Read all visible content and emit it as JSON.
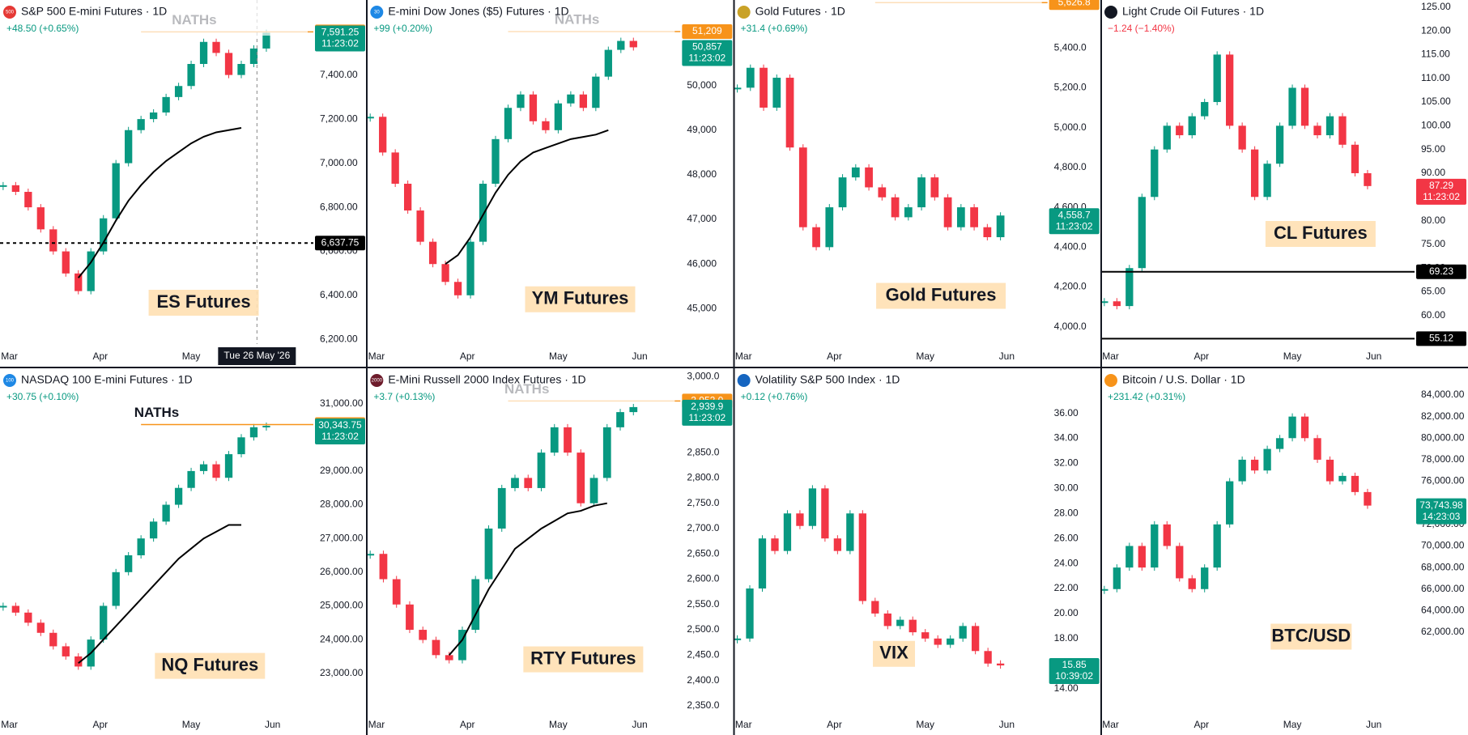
{
  "panels": [
    {
      "type": "candlestick",
      "icon": "500",
      "title": "S&P 500 E-mini Futures · 1D",
      "change": "+48.50 (+0.65%)",
      "change_color": "#089981",
      "ylim": [
        6180,
        7740
      ],
      "yticks": [
        {
          "value": 6200,
          "label": "6,200.00"
        },
        {
          "value": 6400,
          "label": "6,400.00"
        },
        {
          "value": 6600,
          "label": "6,600.00"
        },
        {
          "value": 6800,
          "label": "6,800.00"
        },
        {
          "value": 7000,
          "label": "7,000.00"
        },
        {
          "value": 7200,
          "label": "7,200.00"
        },
        {
          "value": 7400,
          "label": "7,400.00"
        }
      ],
      "categories": [
        "Mar",
        "Apr",
        "May",
        "Jun"
      ],
      "values": [
        6900,
        6870,
        6800,
        6700,
        6600,
        6500,
        6420,
        6600,
        6750,
        7000,
        7150,
        7200,
        7230,
        7300,
        7350,
        7450,
        7550,
        7500,
        7400,
        7450,
        7520,
        7591.25
      ],
      "ma": [
        null,
        null,
        null,
        null,
        null,
        null,
        6480,
        6550,
        6640,
        6740,
        6830,
        6900,
        6960,
        7010,
        7050,
        7090,
        7120,
        7140,
        7150,
        7160,
        null,
        null
      ],
      "price_labels": [
        {
          "value": 7595.25,
          "label": "7,595.25",
          "color": "#f7931a"
        },
        {
          "value": 7591.25,
          "label": "7,591.25",
          "color": "#089981",
          "time": "11:23:02"
        },
        {
          "value": 6637.75,
          "label": "6,637.75",
          "color": "#000000"
        }
      ],
      "note": "NATHs",
      "label": "ES Futures",
      "crosshair_date": "Tue 26 May '26"
    },
    {
      "type": "candlestick",
      "icon": "30",
      "title": "E-mini Dow Jones ($5) Futures · 1D",
      "change": "+99 (+0.20%)",
      "change_color": "#089981",
      "ylim": [
        44208,
        51917
      ],
      "yticks": [
        {
          "value": 45000,
          "label": "45,000"
        },
        {
          "value": 46000,
          "label": "46,000"
        },
        {
          "value": 47000,
          "label": "47,000"
        },
        {
          "value": 48000,
          "label": "48,000"
        },
        {
          "value": 49000,
          "label": "49,000"
        },
        {
          "value": 50000,
          "label": "50,000"
        }
      ],
      "categories": [
        "Mar",
        "Apr",
        "May",
        "Jun"
      ],
      "values": [
        49300,
        48500,
        47800,
        47200,
        46500,
        46000,
        45600,
        45300,
        46500,
        47800,
        48800,
        49500,
        49800,
        49200,
        49000,
        49600,
        49800,
        49500,
        50200,
        50800,
        51000,
        50857
      ],
      "ma": [
        null,
        null,
        null,
        null,
        null,
        null,
        46000,
        46200,
        46600,
        47100,
        47600,
        48000,
        48300,
        48500,
        48600,
        48700,
        48800,
        48850,
        48900,
        49000,
        null,
        null
      ],
      "price_labels": [
        {
          "value": 51209,
          "label": "51,209",
          "color": "#f7931a"
        },
        {
          "value": 50857,
          "label": "50,857",
          "color": "#089981",
          "time": "11:23:02"
        }
      ],
      "note": "NATHs",
      "label": "YM Futures"
    },
    {
      "type": "candlestick",
      "title": "Gold Futures · 1D",
      "change": "+31.4 (+0.69%)",
      "change_color": "#089981",
      "ylim": [
        3914,
        5640
      ],
      "yticks": [
        {
          "value": 4000,
          "label": "4,000.0"
        },
        {
          "value": 4200,
          "label": "4,200.0"
        },
        {
          "value": 4400,
          "label": "4,400.0"
        },
        {
          "value": 4600,
          "label": "4,600.0"
        },
        {
          "value": 4800,
          "label": "4,800.0"
        },
        {
          "value": 5000,
          "label": "5,000.0"
        },
        {
          "value": 5200,
          "label": "5,200.0"
        },
        {
          "value": 5400,
          "label": "5,400.0"
        }
      ],
      "categories": [
        "Mar",
        "Apr",
        "May",
        "Jun"
      ],
      "values": [
        5200,
        5300,
        5100,
        5250,
        4900,
        4500,
        4400,
        4600,
        4750,
        4800,
        4700,
        4650,
        4550,
        4600,
        4750,
        4650,
        4500,
        4600,
        4500,
        4450,
        4558.7
      ],
      "price_labels": [
        {
          "value": 5626.8,
          "label": "5,626.8",
          "color": "#f7931a"
        },
        {
          "value": 4558.7,
          "label": "4,558.7",
          "color": "#089981",
          "time": "11:23:02"
        }
      ],
      "label": "Gold Futures"
    },
    {
      "type": "candlestick",
      "title": "Light Crude Oil Futures · 1D",
      "change": "−1.24 (−1.40%)",
      "change_color": "#f23645",
      "ylim": [
        54,
        126.5
      ],
      "yticks": [
        {
          "value": 60,
          "label": "60.00"
        },
        {
          "value": 65,
          "label": "65.00"
        },
        {
          "value": 70,
          "label": "70.00"
        },
        {
          "value": 75,
          "label": "75.00"
        },
        {
          "value": 80,
          "label": "80.00"
        },
        {
          "value": 85,
          "label": "85.00"
        },
        {
          "value": 90,
          "label": "90.00"
        },
        {
          "value": 95,
          "label": "95.00"
        },
        {
          "value": 100,
          "label": "100.00"
        },
        {
          "value": 105,
          "label": "105.00"
        },
        {
          "value": 110,
          "label": "110.00"
        },
        {
          "value": 115,
          "label": "115.00"
        },
        {
          "value": 120,
          "label": "120.00"
        },
        {
          "value": 125,
          "label": "125.00"
        }
      ],
      "categories": [
        "Mar",
        "Apr",
        "May",
        "Jun"
      ],
      "values": [
        63,
        62,
        70,
        85,
        95,
        100,
        98,
        102,
        105,
        115,
        100,
        95,
        85,
        92,
        100,
        108,
        100,
        98,
        102,
        96,
        90,
        87.29
      ],
      "price_labels": [
        {
          "value": 87.29,
          "label": "87.29",
          "color": "#f23645",
          "time": "11:23:02"
        },
        {
          "value": 69.23,
          "label": "69.23",
          "color": "#000000"
        },
        {
          "value": 55.12,
          "label": "55.12",
          "color": "#000000"
        }
      ],
      "label": "CL Futures"
    },
    {
      "type": "candlestick",
      "icon": "100",
      "title": "NASDAQ 100 E-mini Futures · 1D",
      "change": "+30.75 (+0.10%)",
      "change_color": "#089981",
      "ylim": [
        21841,
        32048
      ],
      "yticks": [
        {
          "value": 23000,
          "label": "23,000.00"
        },
        {
          "value": 24000,
          "label": "24,000.00"
        },
        {
          "value": 25000,
          "label": "25,000.00"
        },
        {
          "value": 26000,
          "label": "26,000.00"
        },
        {
          "value": 27000,
          "label": "27,000.00"
        },
        {
          "value": 28000,
          "label": "28,000.00"
        },
        {
          "value": 29000,
          "label": "29,000.00"
        },
        {
          "value": 31000,
          "label": "31,000.00"
        }
      ],
      "categories": [
        "Mar",
        "Apr",
        "May",
        "Jun"
      ],
      "values": [
        25000,
        24800,
        24500,
        24200,
        23800,
        23500,
        23200,
        24000,
        25000,
        26000,
        26500,
        27000,
        27500,
        28000,
        28500,
        29000,
        29200,
        28800,
        29500,
        30000,
        30300,
        30343.75
      ],
      "ma": [
        null,
        null,
        null,
        null,
        null,
        null,
        23300,
        23600,
        24000,
        24400,
        24800,
        25200,
        25600,
        26000,
        26400,
        26700,
        27000,
        27200,
        27400,
        27400,
        null,
        null
      ],
      "price_labels": [
        {
          "value": 30379,
          "label": "30,379.00",
          "color": "#f7931a"
        },
        {
          "value": 30343.75,
          "label": "30,343.75",
          "color": "#089981",
          "time": "11:23:02"
        }
      ],
      "note": "NATHs",
      "label": "NQ Futures"
    },
    {
      "type": "candlestick",
      "icon": "2000",
      "title": "E-Mini Russell 2000 Index Futures · 1D",
      "change": "+3.7 (+0.13%)",
      "change_color": "#089981",
      "ylim": [
        2337,
        3016.5
      ],
      "yticks": [
        {
          "value": 2350,
          "label": "2,350.0"
        },
        {
          "value": 2400,
          "label": "2,400.0"
        },
        {
          "value": 2450,
          "label": "2,450.0"
        },
        {
          "value": 2500,
          "label": "2,500.0"
        },
        {
          "value": 2550,
          "label": "2,550.0"
        },
        {
          "value": 2600,
          "label": "2,600.0"
        },
        {
          "value": 2650,
          "label": "2,650.0"
        },
        {
          "value": 2700,
          "label": "2,700.0"
        },
        {
          "value": 2750,
          "label": "2,750.0"
        },
        {
          "value": 2800,
          "label": "2,800.0"
        },
        {
          "value": 2850,
          "label": "2,850.0"
        },
        {
          "value": 3000,
          "label": "3,000.0"
        }
      ],
      "categories": [
        "Mar",
        "Apr",
        "May",
        "Jun"
      ],
      "values": [
        2650,
        2600,
        2550,
        2500,
        2480,
        2450,
        2440,
        2500,
        2600,
        2700,
        2780,
        2800,
        2780,
        2850,
        2900,
        2850,
        2750,
        2800,
        2900,
        2930,
        2939.9
      ],
      "ma": [
        null,
        null,
        null,
        null,
        null,
        null,
        2450,
        2480,
        2530,
        2580,
        2620,
        2660,
        2680,
        2700,
        2715,
        2730,
        2735,
        2745,
        2750,
        null,
        null
      ],
      "price_labels": [
        {
          "value": 2952,
          "label": "2,952.0",
          "color": "#f7931a"
        },
        {
          "value": 2939.9,
          "label": "2,939.9",
          "color": "#089981",
          "time": "11:23:02"
        }
      ],
      "note": "NATHs",
      "label": "RTY Futures"
    },
    {
      "type": "candlestick",
      "title": "Volatility S&P 500 Index · 1D",
      "change": "+0.12 (+0.76%)",
      "change_color": "#089981",
      "ylim": [
        12.1,
        39.6
      ],
      "yticks": [
        {
          "value": 14,
          "label": "14.00"
        },
        {
          "value": 18,
          "label": "18.00"
        },
        {
          "value": 20,
          "label": "20.00"
        },
        {
          "value": 22,
          "label": "22.00"
        },
        {
          "value": 24,
          "label": "24.00"
        },
        {
          "value": 26,
          "label": "26.00"
        },
        {
          "value": 28,
          "label": "28.00"
        },
        {
          "value": 30,
          "label": "30.00"
        },
        {
          "value": 32,
          "label": "32.00"
        },
        {
          "value": 34,
          "label": "34.00"
        },
        {
          "value": 36,
          "label": "36.00"
        }
      ],
      "categories": [
        "Mar",
        "Apr",
        "May",
        "Jun"
      ],
      "values": [
        18,
        22,
        26,
        25,
        28,
        27,
        30,
        26,
        25,
        28,
        21,
        20,
        19,
        19.5,
        18.5,
        18,
        17.5,
        18,
        19,
        17,
        16,
        15.85
      ],
      "price_labels": [
        {
          "value": 15.85,
          "label": "15.85",
          "color": "#089981",
          "time": "10:39:02"
        }
      ],
      "label": "VIX"
    },
    {
      "type": "candlestick",
      "title": "Bitcoin / U.S. Dollar · 1D",
      "change": "+231.42 (+0.31%)",
      "change_color": "#089981",
      "ylim": [
        54570,
        86477
      ],
      "yticks": [
        {
          "value": 62000,
          "label": "62,000.00"
        },
        {
          "value": 64000,
          "label": "64,000.00"
        },
        {
          "value": 66000,
          "label": "66,000.00"
        },
        {
          "value": 68000,
          "label": "68,000.00"
        },
        {
          "value": 70000,
          "label": "70,000.00"
        },
        {
          "value": 72000,
          "label": "72,000.00"
        },
        {
          "value": 76000,
          "label": "76,000.00"
        },
        {
          "value": 78000,
          "label": "78,000.00"
        },
        {
          "value": 80000,
          "label": "80,000.00"
        },
        {
          "value": 82000,
          "label": "82,000.00"
        },
        {
          "value": 84000,
          "label": "84,000.00"
        }
      ],
      "categories": [
        "Mar",
        "Apr",
        "May",
        "Jun"
      ],
      "values": [
        66000,
        68000,
        70000,
        68000,
        72000,
        70000,
        67000,
        66000,
        68000,
        72000,
        76000,
        78000,
        77000,
        79000,
        80000,
        82000,
        80000,
        78000,
        76000,
        76500,
        75000,
        73743.98
      ],
      "price_labels": [
        {
          "value": 73743.98,
          "label": "73,743.98",
          "color": "#089981",
          "time": "14:23:03"
        }
      ],
      "label": "BTC/USD"
    }
  ]
}
